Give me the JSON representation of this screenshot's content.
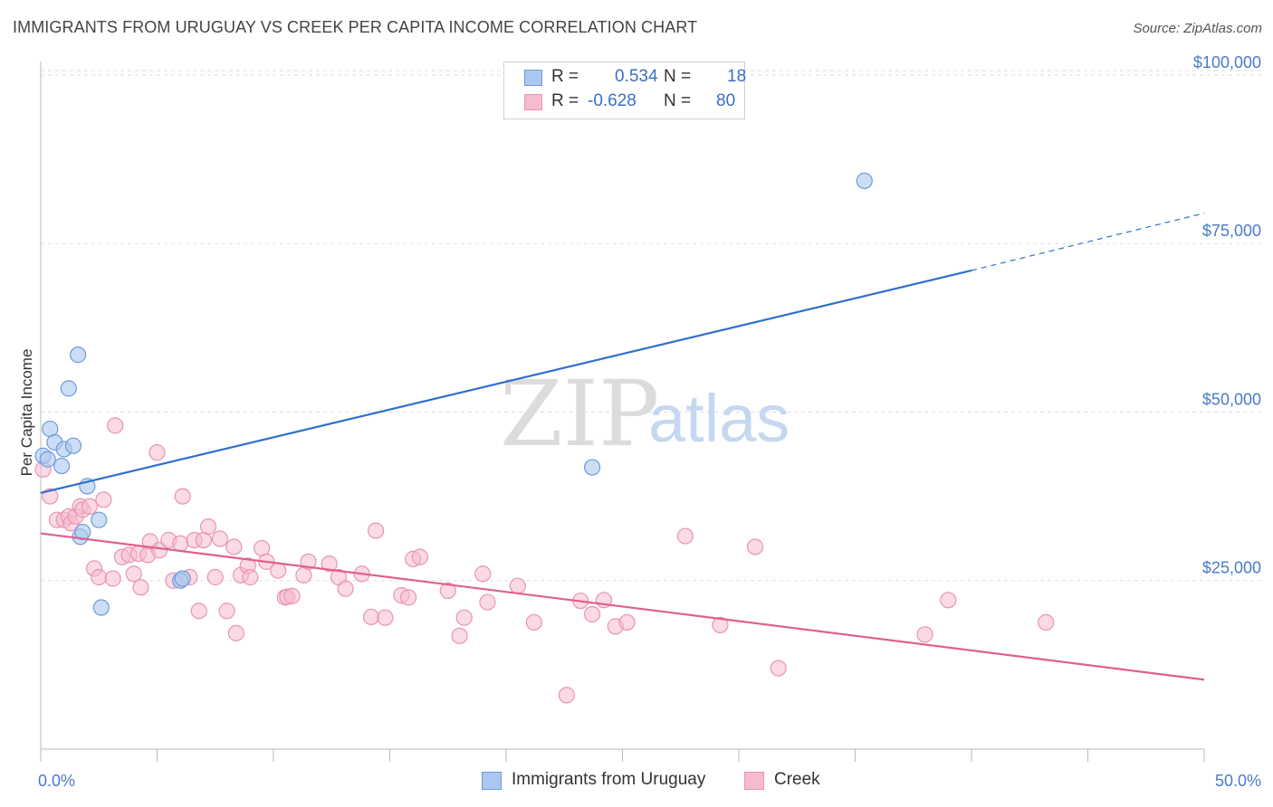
{
  "title": "IMMIGRANTS FROM URUGUAY VS CREEK PER CAPITA INCOME CORRELATION CHART",
  "source": "Source: ZipAtlas.com",
  "watermark": {
    "zip": "ZIP",
    "atlas": "atlas"
  },
  "colors": {
    "uruguay_fill": "#aac8ef",
    "uruguay_stroke": "#6f9ad8",
    "uruguay_line": "#2f6fcc",
    "creek_fill": "#f6bccd",
    "creek_stroke": "#e994b0",
    "creek_line": "#e0608e",
    "tick_text": "#4a7ac9",
    "grid": "#dddddd"
  },
  "legend": {
    "rows": [
      {
        "r_label": "R =",
        "r_value": "0.534",
        "n_label": "N =",
        "n_value": "18"
      },
      {
        "r_label": "R =",
        "r_value": "-0.628",
        "n_label": "N =",
        "n_value": "80"
      }
    ]
  },
  "bottom_legend": [
    "Immigrants from Uruguay",
    "Creek"
  ],
  "chart_data": {
    "type": "scatter",
    "title": "IMMIGRANTS FROM URUGUAY VS CREEK PER CAPITA INCOME CORRELATION CHART",
    "xlabel": "",
    "ylabel": "Per Capita Income",
    "xlim": [
      0,
      50
    ],
    "ylim": [
      0,
      102000
    ],
    "x_tick_labels": [
      "0.0%",
      "50.0%"
    ],
    "y_ticks": [
      25000,
      50000,
      75000,
      100000
    ],
    "y_tick_labels": [
      "$25,000",
      "$50,000",
      "$75,000",
      "$100,000"
    ],
    "grid": true,
    "legend_position": "top-center",
    "series": [
      {
        "name": "Immigrants from Uruguay",
        "r": 0.534,
        "n": 18,
        "points": [
          [
            0.1,
            43500
          ],
          [
            0.3,
            43000
          ],
          [
            0.4,
            47500
          ],
          [
            0.6,
            45500
          ],
          [
            0.9,
            42000
          ],
          [
            1.0,
            44500
          ],
          [
            1.2,
            53500
          ],
          [
            1.4,
            45000
          ],
          [
            1.6,
            58500
          ],
          [
            1.7,
            31500
          ],
          [
            1.8,
            32200
          ],
          [
            2.0,
            39000
          ],
          [
            2.5,
            34000
          ],
          [
            2.6,
            21000
          ],
          [
            6.0,
            25000
          ],
          [
            6.1,
            25300
          ],
          [
            23.7,
            41800
          ],
          [
            35.4,
            84300
          ]
        ],
        "trend": {
          "x0": 0,
          "y0": 38000,
          "x1": 40,
          "y1": 71000,
          "dashed_to_x": 50,
          "dashed_to_y": 79500
        }
      },
      {
        "name": "Creek",
        "r": -0.628,
        "n": 80,
        "points": [
          [
            0.1,
            41500
          ],
          [
            0.4,
            37500
          ],
          [
            0.7,
            34000
          ],
          [
            1.0,
            34000
          ],
          [
            1.2,
            34500
          ],
          [
            1.3,
            33500
          ],
          [
            1.5,
            34500
          ],
          [
            1.7,
            36000
          ],
          [
            1.8,
            35500
          ],
          [
            2.1,
            36000
          ],
          [
            2.3,
            26800
          ],
          [
            2.5,
            25500
          ],
          [
            2.7,
            37000
          ],
          [
            3.1,
            25300
          ],
          [
            3.2,
            48000
          ],
          [
            3.5,
            28500
          ],
          [
            3.8,
            28800
          ],
          [
            4.0,
            26000
          ],
          [
            4.2,
            29000
          ],
          [
            4.3,
            24000
          ],
          [
            4.6,
            28800
          ],
          [
            4.7,
            30800
          ],
          [
            5.0,
            44000
          ],
          [
            5.1,
            29500
          ],
          [
            5.5,
            31000
          ],
          [
            5.7,
            25000
          ],
          [
            6.0,
            30500
          ],
          [
            6.1,
            37500
          ],
          [
            6.4,
            25500
          ],
          [
            6.6,
            31000
          ],
          [
            6.8,
            20500
          ],
          [
            7.0,
            31000
          ],
          [
            7.2,
            33000
          ],
          [
            7.5,
            25500
          ],
          [
            7.7,
            31200
          ],
          [
            8.0,
            20500
          ],
          [
            8.3,
            30000
          ],
          [
            8.4,
            17200
          ],
          [
            8.6,
            25800
          ],
          [
            8.9,
            27200
          ],
          [
            9.0,
            25500
          ],
          [
            9.5,
            29800
          ],
          [
            9.7,
            27800
          ],
          [
            10.2,
            26500
          ],
          [
            10.5,
            22500
          ],
          [
            10.6,
            22600
          ],
          [
            10.8,
            22700
          ],
          [
            11.3,
            25800
          ],
          [
            11.5,
            27800
          ],
          [
            12.4,
            27500
          ],
          [
            12.8,
            25500
          ],
          [
            13.1,
            23800
          ],
          [
            13.8,
            26000
          ],
          [
            14.2,
            19600
          ],
          [
            14.4,
            32400
          ],
          [
            14.8,
            19500
          ],
          [
            15.5,
            22800
          ],
          [
            15.8,
            22500
          ],
          [
            16.0,
            28200
          ],
          [
            16.3,
            28500
          ],
          [
            17.5,
            23500
          ],
          [
            18.0,
            16800
          ],
          [
            18.2,
            19500
          ],
          [
            19.0,
            26000
          ],
          [
            19.2,
            21800
          ],
          [
            20.5,
            24200
          ],
          [
            21.2,
            18800
          ],
          [
            22.6,
            8000
          ],
          [
            23.2,
            22000
          ],
          [
            23.7,
            20000
          ],
          [
            24.2,
            22100
          ],
          [
            24.7,
            18200
          ],
          [
            25.2,
            18800
          ],
          [
            27.7,
            31600
          ],
          [
            29.2,
            18400
          ],
          [
            30.7,
            30000
          ],
          [
            31.7,
            12000
          ],
          [
            38.0,
            17000
          ],
          [
            39.0,
            22100
          ],
          [
            43.2,
            18800
          ]
        ],
        "trend": {
          "x0": 0,
          "y0": 32000,
          "x1": 50,
          "y1": 10300
        }
      }
    ]
  }
}
